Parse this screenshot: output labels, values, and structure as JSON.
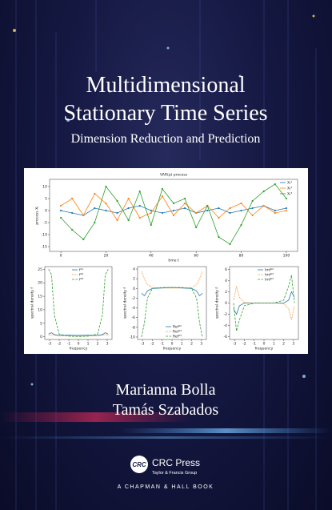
{
  "title_lines": [
    "Multidimensional",
    "Stationary Time Series"
  ],
  "subtitle": "Dimension Reduction and Prediction",
  "authors": [
    "Marianna Bolla",
    "Tamás Szabados"
  ],
  "publisher": {
    "logo": "CRC",
    "name": "CRC Press",
    "group": "Taylor & Francis Group",
    "imprint": "A CHAPMAN & HALL BOOK"
  },
  "chart_data": [
    {
      "type": "line",
      "title": "VAR(p) process",
      "xlabel": "time t",
      "ylabel": "process Xₜ",
      "markers": true,
      "x": [
        0,
        5,
        10,
        15,
        20,
        25,
        30,
        35,
        40,
        45,
        50,
        55,
        60,
        65,
        70,
        75,
        80,
        85,
        90,
        95,
        100
      ],
      "xlim": [
        -5,
        105
      ],
      "ylim": [
        -17,
        13
      ],
      "xticks": [
        0,
        20,
        40,
        60,
        80,
        100
      ],
      "yticks": [
        -15,
        -10,
        -5,
        0,
        5,
        10
      ],
      "series": [
        {
          "name": "Xₜ¹",
          "color": "#1f77b4",
          "style": "solid",
          "values": [
            0,
            -1,
            -2,
            1,
            0,
            -1,
            1,
            2,
            0,
            -1,
            0,
            1,
            -1,
            0,
            1,
            -1,
            0,
            1,
            2,
            0,
            1
          ]
        },
        {
          "name": "Xₜ²",
          "color": "#ff7f0e",
          "style": "solid",
          "values": [
            2,
            5,
            -2,
            7,
            3,
            -4,
            5,
            -3,
            -1,
            6,
            -2,
            3,
            -1,
            2,
            -3,
            1,
            3,
            -2,
            2,
            -1,
            0
          ]
        },
        {
          "name": "Xₜ³",
          "color": "#2ca02c",
          "style": "solid",
          "values": [
            -3,
            -8,
            -12,
            -5,
            10,
            4,
            -4,
            8,
            -6,
            9,
            3,
            5,
            -7,
            2,
            -11,
            -14,
            -6,
            4,
            8,
            11,
            5
          ]
        }
      ]
    },
    {
      "type": "line",
      "xlabel": "frequency",
      "ylabel": "spectral density f",
      "markers": false,
      "x": [
        -3.1,
        -2.8,
        -2.5,
        -2,
        -1,
        0,
        1,
        2,
        2.5,
        2.8,
        3.1
      ],
      "xlim": [
        -3.5,
        3.5
      ],
      "ylim": [
        -1,
        26
      ],
      "xticks": [
        -3,
        -2,
        -1,
        0,
        1,
        2,
        3
      ],
      "yticks": [
        0,
        5,
        10,
        15,
        20,
        25
      ],
      "series": [
        {
          "name": "f¹¹",
          "color": "#1f77b4",
          "style": "solid",
          "values": [
            1,
            1.5,
            0.8,
            0.5,
            0.6,
            0.5,
            0.6,
            0.5,
            0.8,
            1.5,
            1
          ]
        },
        {
          "name": "f²²",
          "color": "#ff7f0e",
          "style": "dotted",
          "values": [
            0.5,
            0.8,
            0.6,
            0.4,
            0.3,
            0.3,
            0.3,
            0.4,
            0.6,
            0.8,
            0.5
          ]
        },
        {
          "name": "f³³",
          "color": "#2ca02c",
          "style": "dashed",
          "values": [
            25,
            23,
            8,
            1,
            0.2,
            0.1,
            0.2,
            1,
            8,
            23,
            25
          ]
        }
      ]
    },
    {
      "type": "line",
      "xlabel": "frequency",
      "ylabel": "spectral density f",
      "markers": false,
      "x": [
        -3.1,
        -2.8,
        -2.5,
        -2,
        -1,
        0,
        1,
        2,
        2.5,
        2.8,
        3.1
      ],
      "xlim": [
        -3.5,
        3.5
      ],
      "ylim": [
        -10.5,
        4.5
      ],
      "xticks": [
        -3,
        -2,
        -1,
        0,
        1,
        2,
        3
      ],
      "yticks": [
        -10,
        -8,
        -6,
        -4,
        -2,
        0,
        2,
        4
      ],
      "series": [
        {
          "name": "Ref¹²",
          "color": "#1f77b4",
          "style": "solid",
          "values": [
            -1,
            -1.5,
            -0.5,
            0,
            0.1,
            0.2,
            0.1,
            0,
            -0.5,
            -1.5,
            -1
          ]
        },
        {
          "name": "Ref¹³",
          "color": "#ff7f0e",
          "style": "dotted",
          "values": [
            3.5,
            2,
            0.8,
            0.2,
            0.1,
            0.1,
            0.1,
            0.2,
            0.8,
            2,
            3.5
          ]
        },
        {
          "name": "Ref²³",
          "color": "#2ca02c",
          "style": "dashed",
          "values": [
            -10,
            -7,
            -2,
            0,
            0.2,
            0.2,
            0.2,
            0,
            -2,
            -7,
            -10
          ]
        }
      ]
    },
    {
      "type": "line",
      "xlabel": "frequency",
      "ylabel": "spectral density f",
      "markers": false,
      "x": [
        -3.1,
        -2.8,
        -2.5,
        -2,
        -1,
        0,
        1,
        2,
        2.5,
        2.8,
        3.1
      ],
      "xlim": [
        -3.5,
        3.5
      ],
      "ylim": [
        -6.5,
        6.5
      ],
      "xticks": [
        -3,
        -2,
        -1,
        0,
        1,
        2,
        3
      ],
      "yticks": [
        -6,
        -4,
        -2,
        0,
        2,
        4,
        6
      ],
      "series": [
        {
          "name": "Imf¹²",
          "color": "#1f77b4",
          "style": "solid",
          "values": [
            -1,
            -2,
            -0.5,
            0,
            0,
            0,
            0,
            0,
            0.5,
            2,
            1
          ]
        },
        {
          "name": "Imf¹³",
          "color": "#ff7f0e",
          "style": "dotted",
          "values": [
            0.5,
            3,
            1,
            0.1,
            0,
            0,
            0,
            -0.1,
            -1,
            -3,
            -0.5
          ]
        },
        {
          "name": "Imf²³",
          "color": "#2ca02c",
          "style": "dashed",
          "values": [
            0,
            -5,
            -3,
            -0.5,
            0,
            0,
            0,
            0.5,
            3,
            5,
            0
          ]
        }
      ]
    }
  ]
}
